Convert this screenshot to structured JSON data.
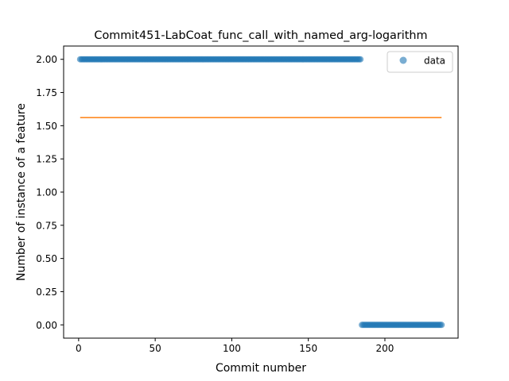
{
  "chart_data": {
    "type": "scatter",
    "title": "Commit451-LabCoat_func_call_with_named_arg-logarithm",
    "xlabel": "Commit number",
    "ylabel": "Number of instance of a feature",
    "xlim": [
      -9.8,
      247.8
    ],
    "ylim": [
      -0.1,
      2.1
    ],
    "xticks": [
      0,
      50,
      100,
      150,
      200
    ],
    "xtick_labels": [
      "0",
      "50",
      "100",
      "150",
      "200"
    ],
    "yticks": [
      0.0,
      0.25,
      0.5,
      0.75,
      1.0,
      1.25,
      1.5,
      1.75,
      2.0
    ],
    "ytick_labels": [
      "0.00",
      "0.25",
      "0.50",
      "0.75",
      "1.00",
      "1.25",
      "1.50",
      "1.75",
      "2.00"
    ],
    "grid": false,
    "legend": {
      "placement": "top-right",
      "entries": [
        "data"
      ]
    },
    "series": [
      {
        "name": "data",
        "kind": "scatter",
        "color": "#1f77b4",
        "alpha": 0.6,
        "segments": [
          {
            "x_start": 1,
            "x_end": 184,
            "y": 2
          },
          {
            "x_start": 185,
            "x_end": 237,
            "y": 0
          }
        ]
      },
      {
        "kind": "line",
        "color": "#ff7f0e",
        "x": [
          1,
          237
        ],
        "y": [
          1.5612,
          1.5612
        ]
      }
    ]
  }
}
